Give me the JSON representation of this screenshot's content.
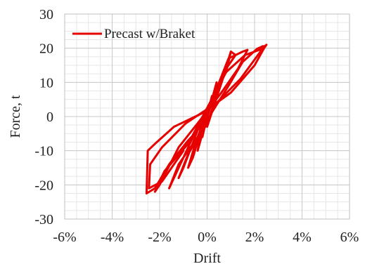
{
  "chart_data": {
    "type": "line",
    "xlabel": "Drift",
    "ylabel": "Force, t",
    "xlim": [
      -6,
      6
    ],
    "ylim": [
      -30,
      30
    ],
    "x_ticks": [
      -6,
      -4,
      -2,
      0,
      2,
      4,
      6
    ],
    "x_tick_labels": [
      "-6%",
      "-4%",
      "-2%",
      "0%",
      "2%",
      "4%",
      "6%"
    ],
    "y_ticks": [
      -30,
      -20,
      -10,
      0,
      10,
      20,
      30
    ],
    "y_tick_labels": [
      "-30",
      "-20",
      "-10",
      "0",
      "10",
      "20",
      "30"
    ],
    "minor_x_step": 0.5,
    "minor_y_step": 2.5,
    "grid": true,
    "legend": {
      "position": "top-left",
      "entries": [
        "Precast w/Braket"
      ]
    },
    "colors": {
      "series": "#e60000",
      "grid_major": "#c8c8c8",
      "grid_minor": "#e6e6e6"
    },
    "series": [
      {
        "name": "Precast w/Braket",
        "loops": [
          [
            [
              0,
              0
            ],
            [
              0.1,
              3
            ],
            [
              0.2,
              6
            ],
            [
              0.15,
              3
            ],
            [
              0,
              0
            ],
            [
              -0.1,
              -3
            ],
            [
              -0.2,
              -6
            ],
            [
              -0.15,
              -3
            ],
            [
              0,
              0
            ]
          ],
          [
            [
              0,
              0
            ],
            [
              0.2,
              5
            ],
            [
              0.4,
              10
            ],
            [
              0.3,
              6
            ],
            [
              0,
              1
            ],
            [
              -0.2,
              -5
            ],
            [
              -0.4,
              -10
            ],
            [
              -0.3,
              -6
            ],
            [
              0,
              -1
            ]
          ],
          [
            [
              0,
              0
            ],
            [
              0.4,
              8
            ],
            [
              0.8,
              15
            ],
            [
              0.6,
              10
            ],
            [
              0,
              2
            ],
            [
              -0.3,
              -5
            ],
            [
              -0.6,
              -12
            ],
            [
              -0.8,
              -15
            ],
            [
              -0.5,
              -8
            ],
            [
              0,
              -2
            ]
          ],
          [
            [
              0,
              -2
            ],
            [
              0.6,
              10
            ],
            [
              1.0,
              19
            ],
            [
              0.8,
              13
            ],
            [
              0.2,
              5
            ],
            [
              -0.4,
              -4
            ],
            [
              -1.0,
              -15
            ],
            [
              -1.2,
              -18
            ],
            [
              -0.8,
              -11
            ],
            [
              -0.2,
              -4
            ]
          ],
          [
            [
              0,
              -3
            ],
            [
              0.8,
              14
            ],
            [
              1.2,
              18
            ],
            [
              1.0,
              19
            ],
            [
              0.7,
              12
            ],
            [
              0.2,
              4
            ],
            [
              -0.6,
              -6
            ],
            [
              -1.4,
              -18
            ],
            [
              -1.6,
              -21
            ],
            [
              -1.2,
              -14
            ],
            [
              -0.4,
              -6
            ]
          ],
          [
            [
              -0.4,
              -6
            ],
            [
              0.9,
              17
            ],
            [
              1.5,
              19
            ],
            [
              1.7,
              19.5
            ],
            [
              1.3,
              14
            ],
            [
              0.6,
              7
            ],
            [
              -0.4,
              -2
            ],
            [
              -1.2,
              -9
            ],
            [
              -2.0,
              -20
            ],
            [
              -2.2,
              -22
            ],
            [
              -1.8,
              -16
            ],
            [
              -0.8,
              -8
            ]
          ],
          [
            [
              -0.8,
              -8
            ],
            [
              0.8,
              13
            ],
            [
              1.6,
              18
            ],
            [
              2.2,
              19.5
            ],
            [
              2.5,
              21
            ],
            [
              2.4,
              20
            ],
            [
              2.0,
              15
            ],
            [
              1.0,
              7
            ],
            [
              -0.2,
              1
            ],
            [
              -1.4,
              -3
            ],
            [
              -2.2,
              -8
            ],
            [
              -2.5,
              -10
            ],
            [
              -2.55,
              -22.5
            ],
            [
              -2.2,
              -21
            ],
            [
              -1.6,
              -14
            ],
            [
              -0.8,
              -7
            ],
            [
              0,
              -1
            ]
          ],
          [
            [
              0,
              -1
            ],
            [
              0.9,
              9
            ],
            [
              1.5,
              16
            ],
            [
              2.1,
              19.8
            ],
            [
              2.35,
              20.6
            ],
            [
              2.3,
              19.5
            ],
            [
              1.4,
              11
            ],
            [
              0.4,
              4
            ],
            [
              -0.9,
              -2
            ],
            [
              -1.9,
              -9
            ],
            [
              -2.4,
              -14
            ],
            [
              -2.45,
              -21
            ],
            [
              -1.9,
              -19
            ],
            [
              -1.0,
              -10
            ]
          ]
        ]
      }
    ]
  }
}
